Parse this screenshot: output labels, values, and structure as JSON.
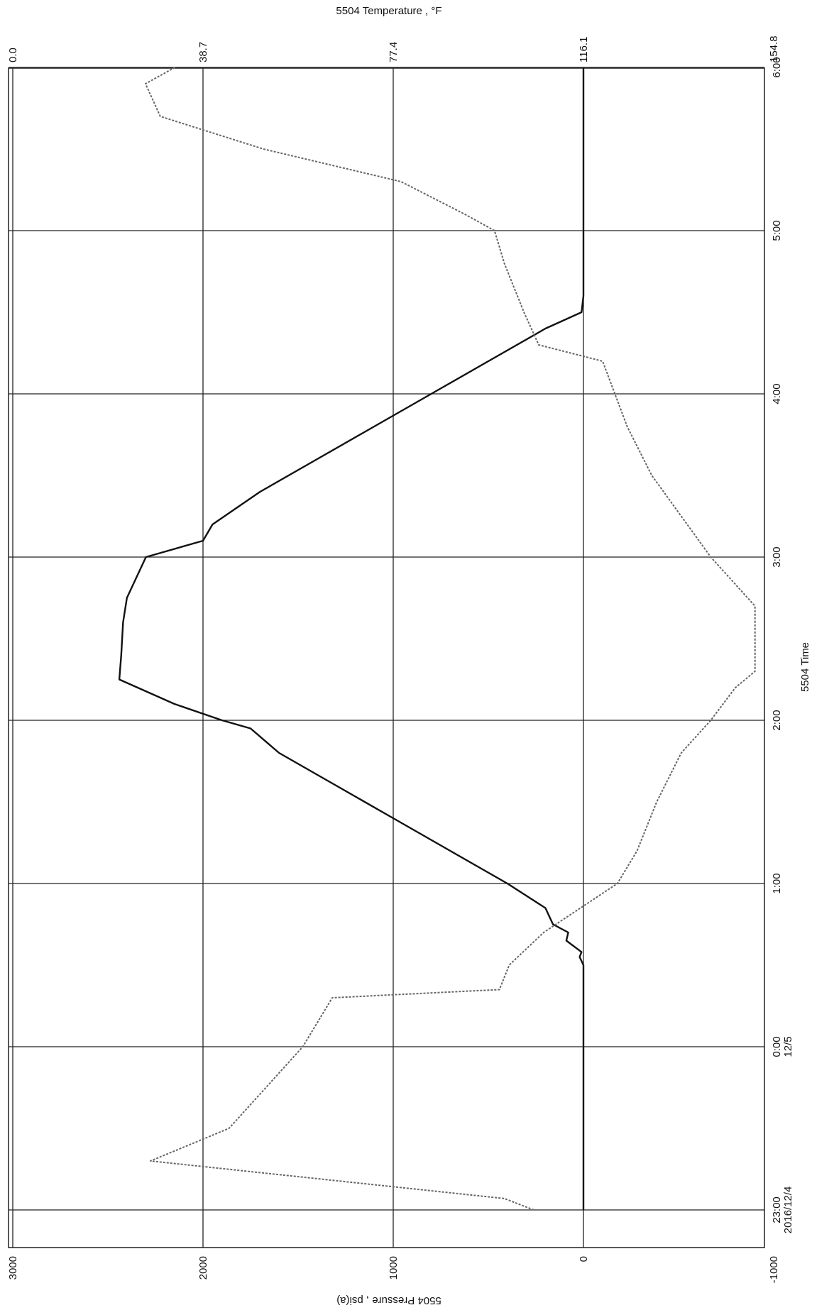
{
  "chart_data": {
    "type": "line",
    "temperature_axis_title": "5504 Temperature , °F",
    "pressure_axis_title": "5504 Pressure , psi(a)",
    "time_axis_title": "5504 Time",
    "time_ticks": [
      {
        "t": 0,
        "label": "23:00",
        "sub": "2016/12/4"
      },
      {
        "t": 1,
        "label": "0:00",
        "sub": "12/5"
      },
      {
        "t": 2,
        "label": "1:00",
        "sub": ""
      },
      {
        "t": 3,
        "label": "2:00",
        "sub": ""
      },
      {
        "t": 4,
        "label": "3:00",
        "sub": ""
      },
      {
        "t": 5,
        "label": "4:00",
        "sub": ""
      },
      {
        "t": 6,
        "label": "5:00",
        "sub": ""
      },
      {
        "t": 7,
        "label": "6:00",
        "sub": ""
      }
    ],
    "pressure_ticks": [
      "3000",
      "2000",
      "1000",
      "0",
      "-1000"
    ],
    "pressure_range": [
      -1000,
      3000
    ],
    "temperature_ticks": [
      "154.8",
      "116.1",
      "77.4",
      "38.7",
      "0.0"
    ],
    "temperature_range": [
      0.0,
      154.8
    ],
    "series": [
      {
        "axis": "pressure",
        "color": "#111111",
        "style": "solid",
        "points": [
          [
            0.0,
            0
          ],
          [
            1.0,
            0
          ],
          [
            1.5,
            0
          ],
          [
            1.55,
            20
          ],
          [
            1.58,
            10
          ],
          [
            1.65,
            90
          ],
          [
            1.7,
            80
          ],
          [
            1.75,
            160
          ],
          [
            1.85,
            200
          ],
          [
            2.0,
            400
          ],
          [
            2.2,
            700
          ],
          [
            2.4,
            1000
          ],
          [
            2.6,
            1300
          ],
          [
            2.8,
            1600
          ],
          [
            2.95,
            1750
          ],
          [
            3.0,
            1900
          ],
          [
            3.1,
            2150
          ],
          [
            3.25,
            2440
          ],
          [
            3.4,
            2430
          ],
          [
            3.6,
            2420
          ],
          [
            3.75,
            2400
          ],
          [
            4.0,
            2300
          ],
          [
            4.1,
            2000
          ],
          [
            4.2,
            1950
          ],
          [
            4.4,
            1700
          ],
          [
            4.6,
            1400
          ],
          [
            4.8,
            1100
          ],
          [
            5.0,
            800
          ],
          [
            5.2,
            500
          ],
          [
            5.4,
            200
          ],
          [
            5.5,
            10
          ],
          [
            5.6,
            0
          ],
          [
            6.3,
            0
          ],
          [
            7.0,
            0
          ]
        ]
      },
      {
        "axis": "temperature",
        "color": "#666666",
        "style": "dashed",
        "points": [
          [
            0.0,
            106
          ],
          [
            0.07,
            100
          ],
          [
            0.3,
            28
          ],
          [
            0.5,
            44
          ],
          [
            1.0,
            59
          ],
          [
            1.2,
            63
          ],
          [
            1.3,
            65
          ],
          [
            1.35,
            99
          ],
          [
            1.5,
            101
          ],
          [
            1.7,
            108
          ],
          [
            2.0,
            123
          ],
          [
            2.2,
            127
          ],
          [
            2.5,
            131
          ],
          [
            2.8,
            136
          ],
          [
            3.0,
            142
          ],
          [
            3.2,
            147
          ],
          [
            3.3,
            151
          ],
          [
            3.7,
            151
          ],
          [
            3.8,
            148
          ],
          [
            4.0,
            142
          ],
          [
            4.5,
            130
          ],
          [
            4.8,
            125
          ],
          [
            5.2,
            120
          ],
          [
            5.3,
            107
          ],
          [
            5.5,
            104
          ],
          [
            5.8,
            100
          ],
          [
            6.0,
            98
          ],
          [
            6.1,
            92
          ],
          [
            6.3,
            79
          ],
          [
            6.5,
            51
          ],
          [
            6.7,
            30
          ],
          [
            6.9,
            27
          ],
          [
            7.0,
            33
          ]
        ]
      }
    ],
    "grid": true
  }
}
